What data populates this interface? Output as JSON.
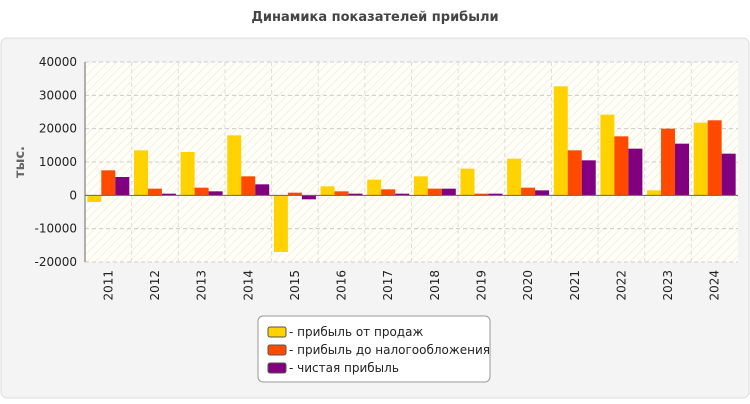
{
  "chart_data": {
    "type": "bar",
    "title": "Динамика показателей прибыли",
    "y_label": "тыс.",
    "categories": [
      "2011",
      "2012",
      "2013",
      "2014",
      "2015",
      "2016",
      "2017",
      "2018",
      "2019",
      "2020",
      "2021",
      "2022",
      "2023",
      "2024"
    ],
    "series": [
      {
        "name": "- прибыль от продаж",
        "color": "#ffd200",
        "values": [
          -2000,
          13500,
          13000,
          18000,
          -17000,
          2700,
          4700,
          5700,
          8000,
          11000,
          32700,
          24200,
          1500,
          21800
        ]
      },
      {
        "name": "- прибыль до налогообложения",
        "color": "#ff4a00",
        "values": [
          7500,
          2000,
          2300,
          5700,
          800,
          1200,
          1800,
          2000,
          500,
          2300,
          13500,
          17700,
          20000,
          22500
        ]
      },
      {
        "name": "- чистая прибыль",
        "color": "#800080",
        "values": [
          5500,
          500,
          1200,
          3300,
          -1200,
          500,
          500,
          2000,
          500,
          1500,
          10500,
          14000,
          15500,
          12500
        ]
      }
    ],
    "ylim": [
      -20000,
      40000
    ],
    "yticks": [
      -20000,
      -10000,
      0,
      10000,
      20000,
      30000,
      40000
    ],
    "grid": true
  }
}
